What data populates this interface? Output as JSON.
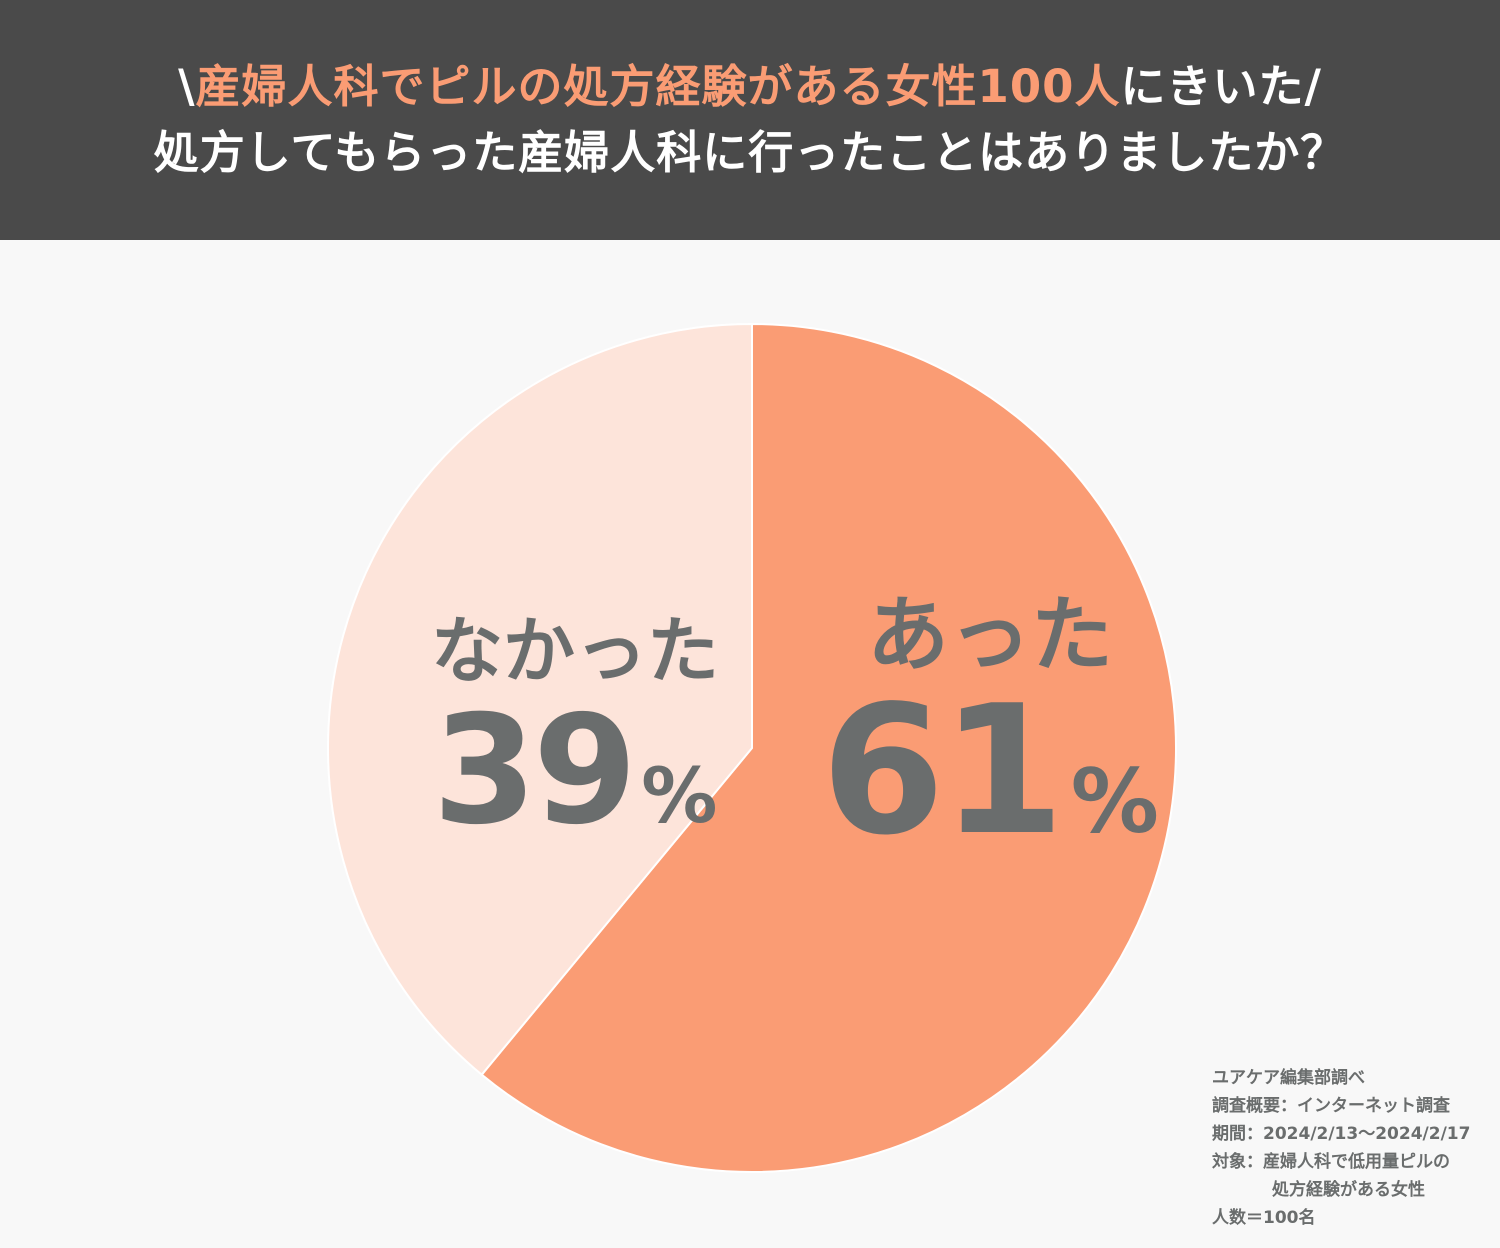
{
  "header": {
    "line1_open": "\\",
    "line1_highlight": "産婦人科でピルの処方経験がある女性100人",
    "line1_rest": "にきいた/",
    "line2": "処方してもらった産婦人科に行ったことはありましたか？"
  },
  "chart_data": {
    "type": "pie",
    "title": "処方してもらった産婦人科に行ったことはありましたか？",
    "slices": [
      {
        "label": "あった",
        "value": 61,
        "display": "61",
        "unit": "%",
        "color": "#fa9c74"
      },
      {
        "label": "なかった",
        "value": 39,
        "display": "39",
        "unit": "%",
        "color": "#fde4da"
      }
    ],
    "start_angle": "12 o'clock",
    "direction": "clockwise"
  },
  "notes": {
    "source": "ユアケア編集部調べ",
    "method": "調査概要：インターネット調査",
    "period": "期間：2024/2/13〜2024/2/17",
    "target": "対象：産婦人科で低用量ピルの",
    "target_cont": "処方経験がある女性",
    "count": "人数＝100名"
  }
}
